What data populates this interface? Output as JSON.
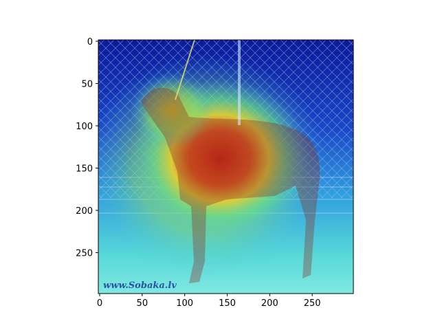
{
  "figure": {
    "watermark": "www.Sobaka.lv",
    "colormap": "jet",
    "overlay": "heatmap-on-photo"
  },
  "chart_data": {
    "type": "heatmap",
    "xlim": [
      0,
      300
    ],
    "ylim": [
      300,
      0
    ],
    "x_ticks": [
      0,
      50,
      100,
      150,
      200,
      250
    ],
    "y_ticks": [
      0,
      50,
      100,
      150,
      200,
      250
    ],
    "grid": false,
    "hotspot_center": [
      120,
      160
    ]
  }
}
